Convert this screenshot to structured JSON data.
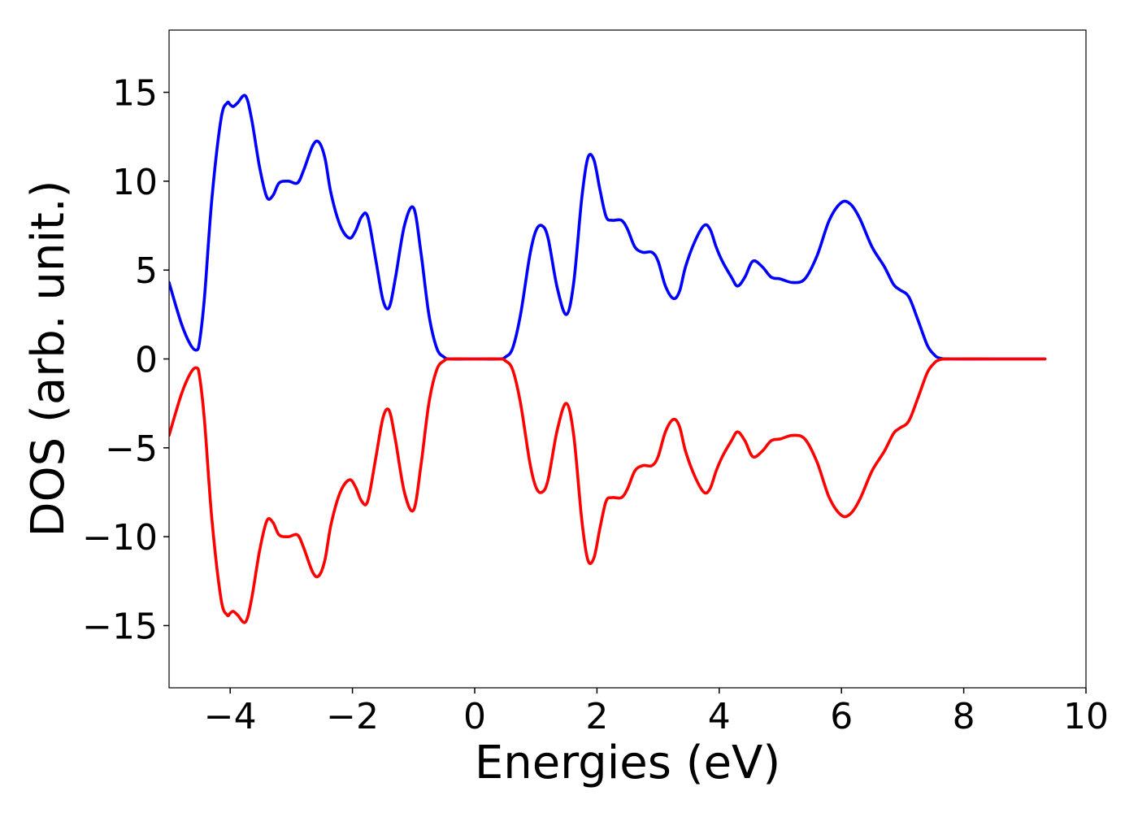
{
  "chart_data": {
    "type": "line",
    "title": "",
    "xlabel": "Energies (eV)",
    "ylabel": "DOS (arb. unit.)",
    "xlim": [
      -5,
      10
    ],
    "ylim": [
      -18.5,
      18.5
    ],
    "x_ticks": [
      -4,
      -2,
      0,
      2,
      4,
      6,
      8,
      10
    ],
    "x_tick_labels": [
      "−4",
      "−2",
      "0",
      "2",
      "4",
      "6",
      "8",
      "10"
    ],
    "y_ticks": [
      -15,
      -10,
      -5,
      0,
      5,
      10,
      15
    ],
    "y_tick_labels": [
      "−15",
      "−10",
      "−5",
      "0",
      "5",
      "10",
      "15"
    ],
    "grid": false,
    "legend": "none",
    "series": [
      {
        "color": "#0000ff",
        "x": [
          -5.0,
          -4.8,
          -4.65,
          -4.55,
          -4.5,
          -4.42,
          -4.3,
          -4.15,
          -4.05,
          -4.0,
          -3.95,
          -3.88,
          -3.75,
          -3.65,
          -3.52,
          -3.4,
          -3.3,
          -3.2,
          -3.05,
          -2.9,
          -2.8,
          -2.65,
          -2.55,
          -2.45,
          -2.35,
          -2.2,
          -2.05,
          -1.95,
          -1.85,
          -1.75,
          -1.62,
          -1.5,
          -1.4,
          -1.3,
          -1.15,
          -1.0,
          -0.88,
          -0.75,
          -0.62,
          -0.5,
          -0.4,
          0.0,
          0.4,
          0.5,
          0.62,
          0.75,
          0.9,
          1.0,
          1.1,
          1.2,
          1.35,
          1.5,
          1.62,
          1.75,
          1.85,
          1.95,
          2.05,
          2.15,
          2.25,
          2.4,
          2.5,
          2.62,
          2.75,
          2.9,
          3.0,
          3.12,
          3.25,
          3.35,
          3.45,
          3.6,
          3.75,
          3.85,
          3.95,
          4.05,
          4.2,
          4.3,
          4.42,
          4.55,
          4.7,
          4.85,
          5.0,
          5.2,
          5.4,
          5.6,
          5.8,
          6.0,
          6.15,
          6.3,
          6.5,
          6.7,
          6.85,
          6.95,
          7.1,
          7.25,
          7.4,
          7.5,
          7.6,
          7.8,
          8.5,
          9.33
        ],
        "y": [
          4.3,
          2.0,
          0.8,
          0.5,
          1.0,
          3.5,
          9.0,
          13.5,
          14.4,
          14.3,
          14.2,
          14.4,
          14.8,
          13.5,
          10.8,
          9.1,
          9.2,
          9.9,
          10.0,
          9.9,
          10.6,
          12.0,
          12.2,
          11.3,
          9.3,
          7.5,
          6.8,
          7.2,
          8.0,
          8.0,
          5.6,
          3.3,
          2.9,
          4.5,
          7.5,
          8.5,
          6.0,
          2.5,
          0.6,
          0.1,
          0.0,
          0.0,
          0.0,
          0.1,
          0.6,
          2.5,
          5.8,
          7.2,
          7.5,
          6.8,
          4.0,
          2.5,
          4.3,
          9.0,
          11.3,
          11.2,
          9.5,
          8.0,
          7.8,
          7.8,
          7.3,
          6.3,
          6.0,
          6.0,
          5.5,
          4.1,
          3.4,
          3.8,
          5.2,
          6.6,
          7.5,
          7.3,
          6.3,
          5.5,
          4.6,
          4.1,
          4.6,
          5.5,
          5.2,
          4.6,
          4.5,
          4.3,
          4.5,
          5.8,
          7.8,
          8.8,
          8.7,
          7.9,
          6.3,
          5.2,
          4.2,
          3.9,
          3.5,
          2.2,
          0.8,
          0.3,
          0.05,
          0.0,
          0.0,
          0.0
        ]
      },
      {
        "color": "#ff0000",
        "x": [
          -5.0,
          -4.8,
          -4.65,
          -4.55,
          -4.5,
          -4.42,
          -4.3,
          -4.15,
          -4.05,
          -4.0,
          -3.95,
          -3.88,
          -3.75,
          -3.65,
          -3.52,
          -3.4,
          -3.3,
          -3.2,
          -3.05,
          -2.9,
          -2.8,
          -2.65,
          -2.55,
          -2.45,
          -2.35,
          -2.2,
          -2.05,
          -1.95,
          -1.85,
          -1.75,
          -1.62,
          -1.5,
          -1.4,
          -1.3,
          -1.15,
          -1.0,
          -0.88,
          -0.75,
          -0.62,
          -0.5,
          -0.4,
          0.0,
          0.4,
          0.5,
          0.62,
          0.75,
          0.9,
          1.0,
          1.1,
          1.2,
          1.35,
          1.5,
          1.62,
          1.75,
          1.85,
          1.95,
          2.05,
          2.15,
          2.25,
          2.4,
          2.5,
          2.62,
          2.75,
          2.9,
          3.0,
          3.12,
          3.25,
          3.35,
          3.45,
          3.6,
          3.75,
          3.85,
          3.95,
          4.05,
          4.2,
          4.3,
          4.42,
          4.55,
          4.7,
          4.85,
          5.0,
          5.2,
          5.4,
          5.6,
          5.8,
          6.0,
          6.15,
          6.3,
          6.5,
          6.7,
          6.85,
          6.95,
          7.1,
          7.25,
          7.4,
          7.5,
          7.6,
          7.8,
          8.5,
          9.33
        ],
        "y": [
          -4.3,
          -2.0,
          -0.8,
          -0.5,
          -1.0,
          -3.5,
          -9.0,
          -13.5,
          -14.4,
          -14.3,
          -14.2,
          -14.4,
          -14.8,
          -13.5,
          -10.8,
          -9.1,
          -9.2,
          -9.9,
          -10.0,
          -9.9,
          -10.6,
          -12.0,
          -12.2,
          -11.3,
          -9.3,
          -7.5,
          -6.8,
          -7.2,
          -8.0,
          -8.0,
          -5.6,
          -3.3,
          -2.9,
          -4.5,
          -7.5,
          -8.5,
          -6.0,
          -2.5,
          -0.6,
          -0.1,
          0.0,
          0.0,
          0.0,
          -0.1,
          -0.6,
          -2.5,
          -5.8,
          -7.2,
          -7.5,
          -6.8,
          -4.0,
          -2.5,
          -4.3,
          -9.0,
          -11.3,
          -11.2,
          -9.5,
          -8.0,
          -7.8,
          -7.8,
          -7.3,
          -6.3,
          -6.0,
          -6.0,
          -5.5,
          -4.1,
          -3.4,
          -3.8,
          -5.2,
          -6.6,
          -7.5,
          -7.3,
          -6.3,
          -5.5,
          -4.6,
          -4.1,
          -4.6,
          -5.5,
          -5.2,
          -4.6,
          -4.5,
          -4.3,
          -4.5,
          -5.8,
          -7.8,
          -8.8,
          -8.7,
          -7.9,
          -6.3,
          -5.2,
          -4.2,
          -3.9,
          -3.5,
          -2.2,
          -0.8,
          -0.3,
          -0.05,
          0.0,
          0.0,
          0.0
        ]
      }
    ]
  }
}
